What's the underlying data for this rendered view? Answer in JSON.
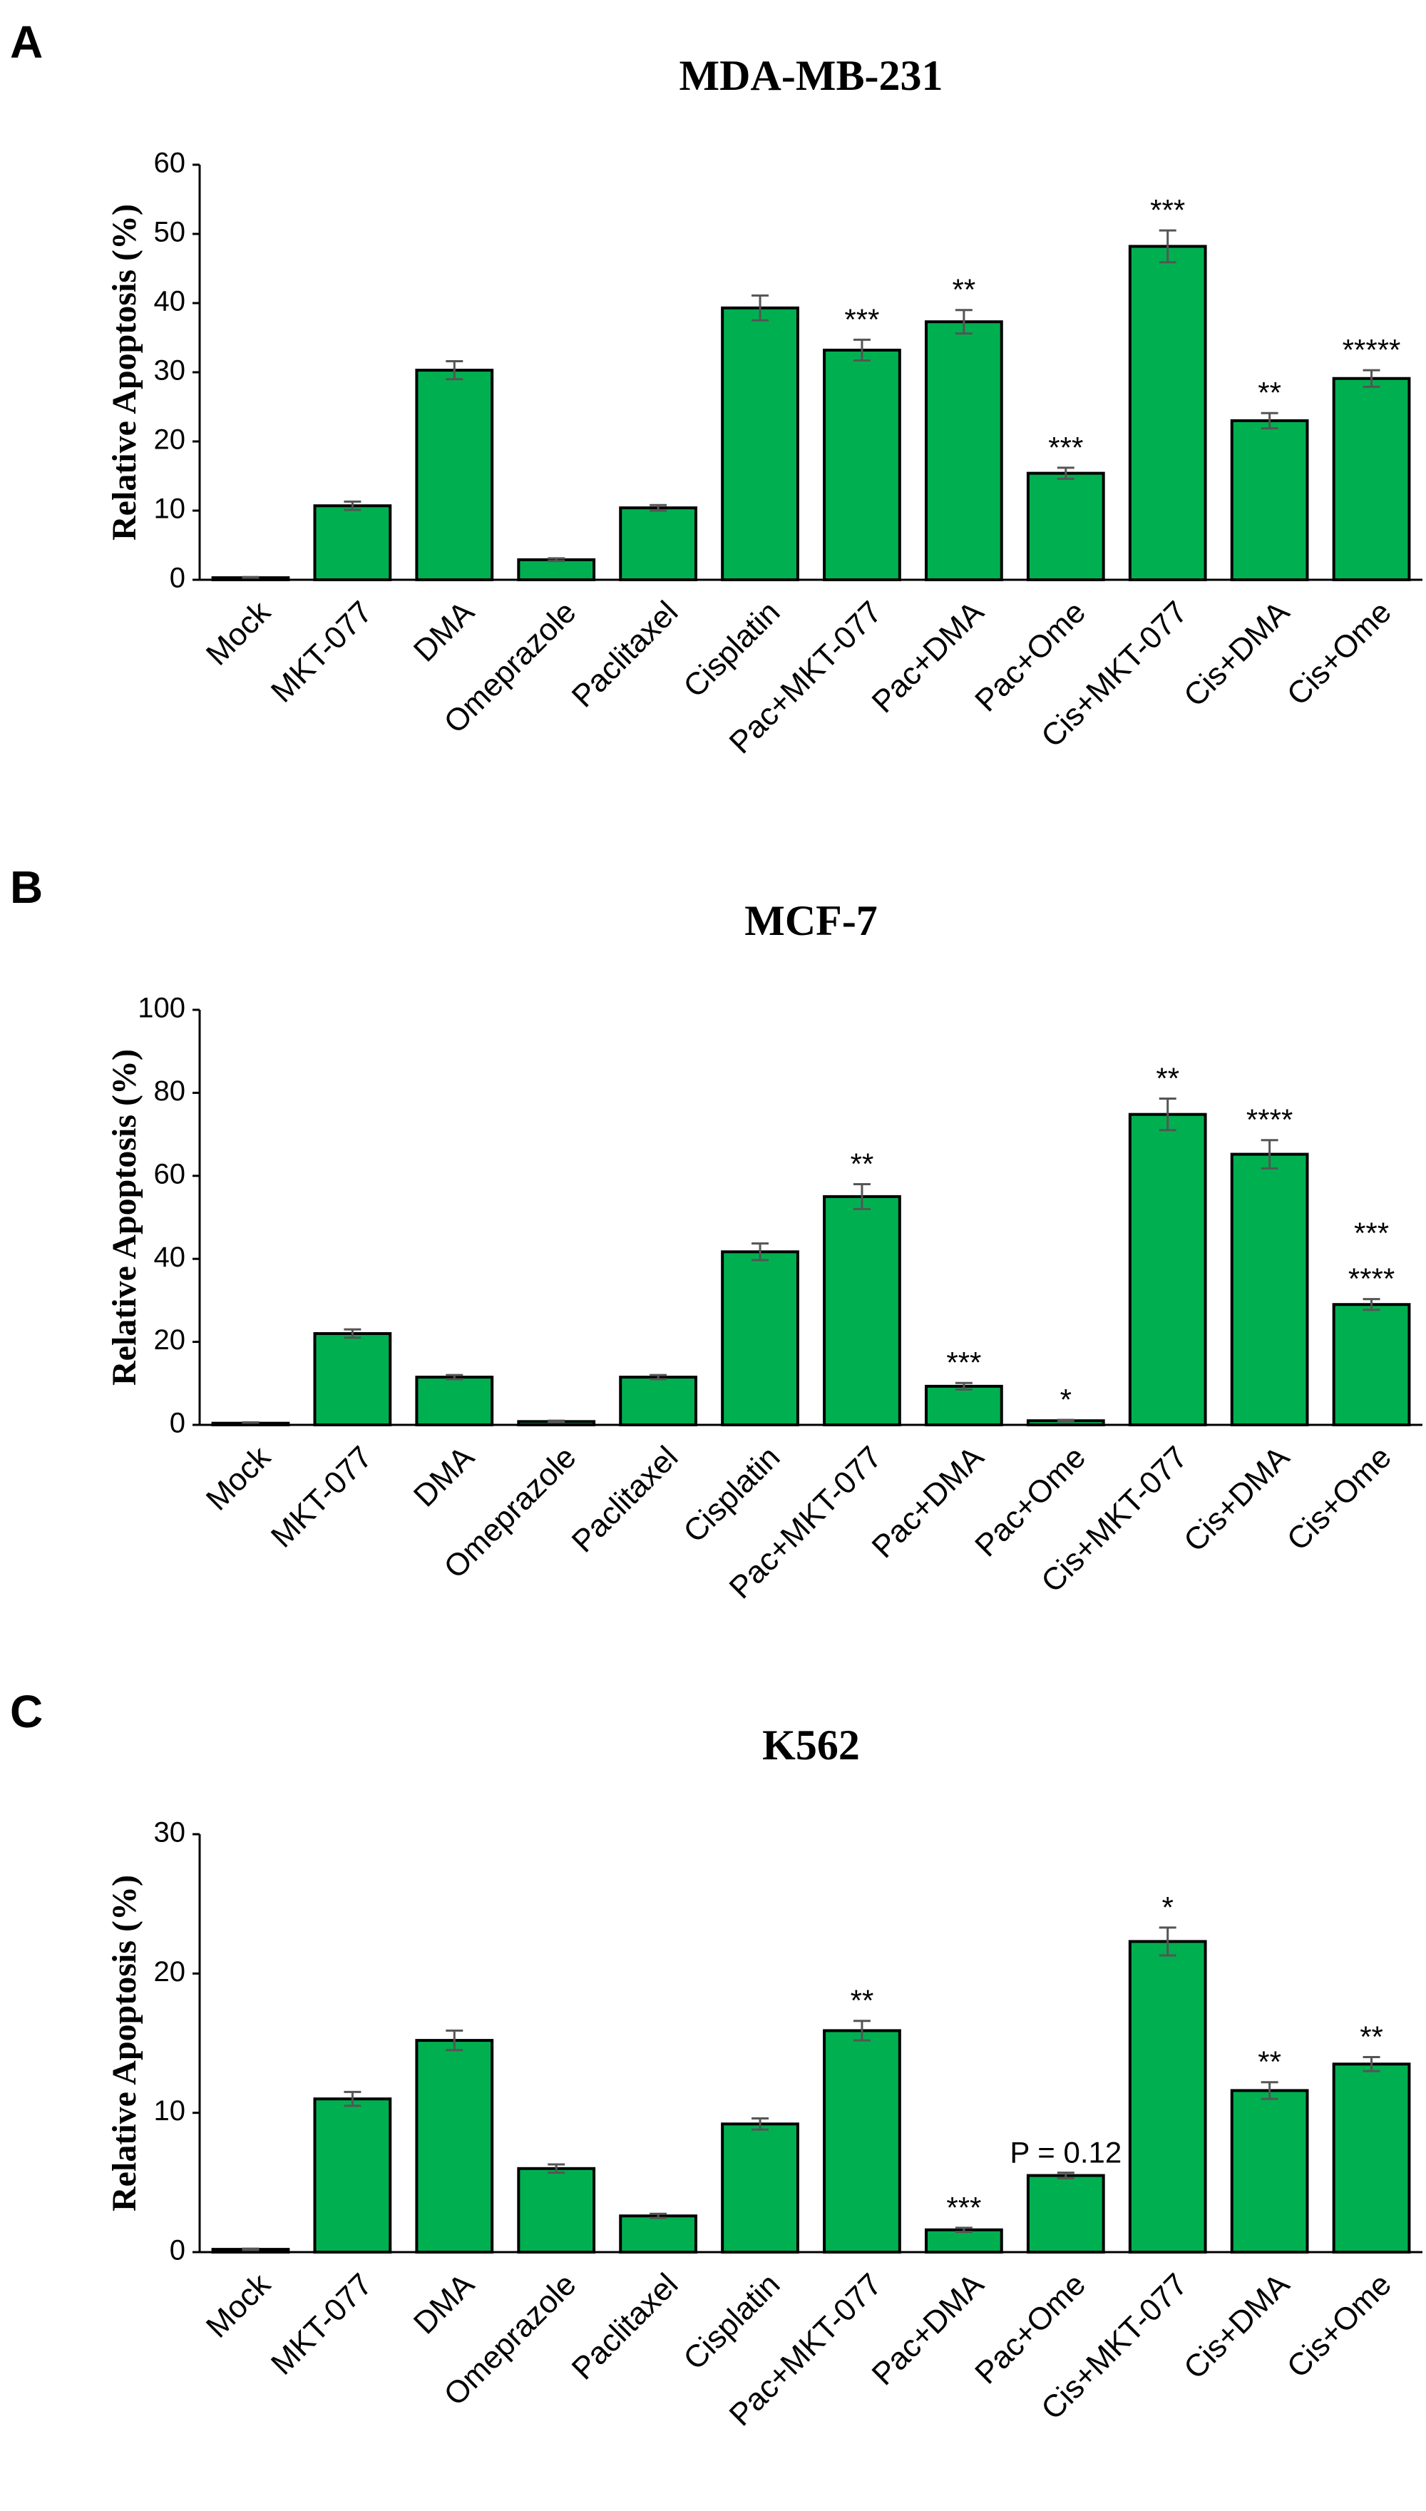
{
  "chart_data": [
    {
      "type": "bar",
      "panel": "A",
      "title": "MDA-MB-231",
      "y_label": "Relative Apoptosis (%)",
      "categories": [
        "Mock",
        "MKT-077",
        "DMA",
        "Omeprazole",
        "Paclitaxel",
        "Cisplatin",
        "Pac+MKT-077",
        "Pac+DMA",
        "Pac+Ome",
        "Cis+MKT-077",
        "Cis+DMA",
        "Cis+Ome"
      ],
      "values": [
        0.3,
        10.7,
        30.3,
        2.9,
        10.4,
        39.3,
        33.2,
        37.3,
        15.4,
        48.2,
        23.0,
        29.1
      ],
      "errors": [
        0.1,
        0.6,
        1.3,
        0.2,
        0.4,
        1.8,
        1.5,
        1.7,
        0.8,
        2.3,
        1.1,
        1.2
      ],
      "annotations": [
        null,
        null,
        null,
        null,
        null,
        null,
        [
          "***"
        ],
        [
          "**"
        ],
        [
          "***"
        ],
        [
          "***"
        ],
        [
          "**"
        ],
        [
          "*****"
        ]
      ],
      "color": "#00b050",
      "ylim": [
        0,
        60
      ],
      "yticks": [
        0,
        10,
        20,
        30,
        40,
        50,
        60
      ]
    },
    {
      "type": "bar",
      "panel": "B",
      "title": "MCF-7",
      "y_label": "Relative Apoptosis (%)",
      "categories": [
        "Mock",
        "MKT-077",
        "DMA",
        "Omeprazole",
        "Paclitaxel",
        "Cisplatin",
        "Pac+MKT-077",
        "Pac+DMA",
        "Pac+Ome",
        "Cis+MKT-077",
        "Cis+DMA",
        "Cis+Ome"
      ],
      "values": [
        0.4,
        22,
        11.5,
        0.8,
        11.5,
        41.7,
        55,
        9.3,
        1,
        74.8,
        65.2,
        29
      ],
      "errors": [
        0.2,
        1,
        0.5,
        0.2,
        0.5,
        2,
        3,
        0.8,
        0.2,
        3.8,
        3.4,
        1.3
      ],
      "annotations": [
        null,
        null,
        null,
        null,
        null,
        null,
        [
          "**"
        ],
        [
          "***"
        ],
        [
          "*"
        ],
        [
          "**"
        ],
        [
          "****"
        ],
        [
          "****",
          "***"
        ]
      ],
      "color": "#00b050",
      "ylim": [
        0,
        100
      ],
      "yticks": [
        0,
        20,
        40,
        60,
        80,
        100
      ]
    },
    {
      "type": "bar",
      "panel": "C",
      "title": "K562",
      "y_label": "Relative Apoptosis (%)",
      "categories": [
        "Mock",
        "MKT-077",
        "DMA",
        "Omeprazole",
        "Paclitaxel",
        "Cisplatin",
        "Pac+MKT-077",
        "Pac+DMA",
        "Pac+Ome",
        "Cis+MKT-077",
        "Cis+DMA",
        "Cis+Ome"
      ],
      "values": [
        0.2,
        11,
        15.2,
        6,
        2.6,
        9.2,
        15.9,
        1.6,
        5.5,
        22.3,
        11.6,
        13.5
      ],
      "errors": [
        0.05,
        0.5,
        0.7,
        0.3,
        0.15,
        0.4,
        0.7,
        0.15,
        0.2,
        1.0,
        0.6,
        0.5
      ],
      "annotations": [
        null,
        null,
        null,
        null,
        null,
        null,
        [
          "**"
        ],
        [
          "***"
        ],
        [
          "P = 0.12"
        ],
        [
          "*"
        ],
        [
          "**"
        ],
        [
          "**"
        ]
      ],
      "color": "#00b050",
      "ylim": [
        0,
        30
      ],
      "yticks": [
        0,
        10,
        20,
        30
      ]
    }
  ]
}
